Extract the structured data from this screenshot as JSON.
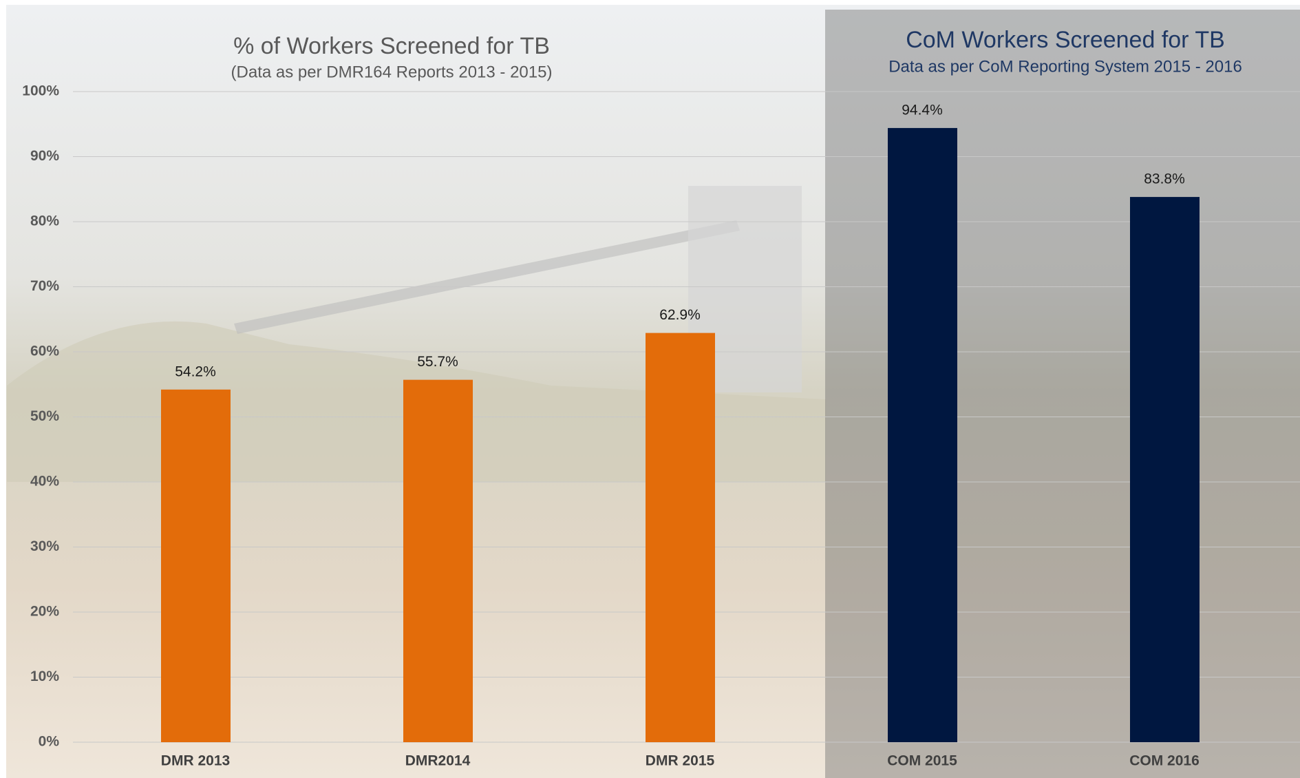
{
  "chart_data": {
    "type": "bar",
    "title": "% of Workers Screened for TB",
    "subtitle": "(Data as per DMR164  Reports 2013 - 2015)",
    "right_title": "CoM Workers Screened for TB",
    "right_subtitle": "Data as per CoM Reporting System 2015 - 2016",
    "categories": [
      "DMR 2013",
      "DMR2014",
      "DMR 2015",
      "COM 2015",
      "COM 2016"
    ],
    "values": [
      54.2,
      55.7,
      62.9,
      94.4,
      83.8
    ],
    "value_labels": [
      "54.2%",
      "55.7%",
      "62.9%",
      "94.4%",
      "83.8%"
    ],
    "colors": [
      "#e36c0a",
      "#e36c0a",
      "#e36c0a",
      "#001740",
      "#001740"
    ],
    "ylim": [
      0,
      100
    ],
    "yticks": [
      {
        "value": 0,
        "label": "0%"
      },
      {
        "value": 10,
        "label": "10%"
      },
      {
        "value": 20,
        "label": "20%"
      },
      {
        "value": 30,
        "label": "30%"
      },
      {
        "value": 40,
        "label": "40%"
      },
      {
        "value": 50,
        "label": "50%"
      },
      {
        "value": 60,
        "label": "60%"
      },
      {
        "value": 70,
        "label": "70%"
      },
      {
        "value": 80,
        "label": "80%"
      },
      {
        "value": 90,
        "label": "90%"
      },
      {
        "value": 100,
        "label": "100%"
      }
    ],
    "grid": true
  }
}
